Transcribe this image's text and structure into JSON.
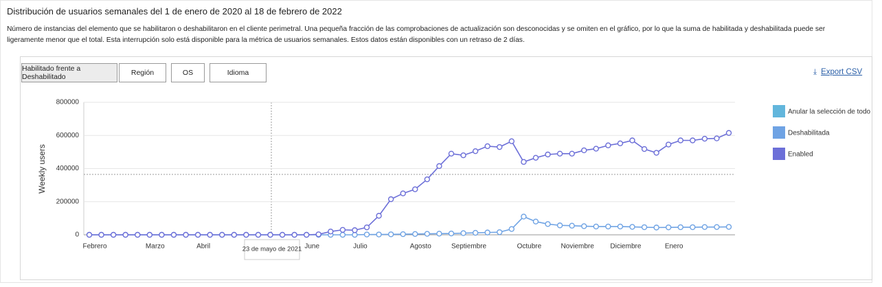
{
  "header": {
    "title": "Distribución de usuarios semanales del 1 de enero de 2020 al 18 de febrero de 2022",
    "description": "Número de instancias del elemento que se habilitaron o deshabilitaron en el cliente perimetral. Una pequeña fracción de las comprobaciones de actualización son desconocidas y se omiten en el gráfico, por lo que la suma de habilitada y deshabilitada puede ser ligeramente menor que el total. Esta interrupción solo está disponible para la métrica de usuarios semanales. Estos datos están disponibles con un retraso de 2 días."
  },
  "tabs": [
    "Habilitado frente a Deshabilitado",
    "Región",
    "OS",
    "Idioma"
  ],
  "export": "Export CSV",
  "chart_data": {
    "type": "line",
    "y_label": "Weekly users",
    "tooltip": "23 de mayo de 2021",
    "deselect_all": {
      "label": "Anular la selección de todo",
      "color": "#62b6dc"
    },
    "categories": [
      "Febrero",
      null,
      null,
      null,
      null,
      "Marzo",
      null,
      null,
      null,
      "Abril",
      null,
      null,
      null,
      null,
      null,
      null,
      null,
      null,
      "June",
      null,
      null,
      null,
      "Julio",
      null,
      null,
      null,
      null,
      "Agosto",
      null,
      null,
      null,
      "Septiembre",
      null,
      null,
      null,
      null,
      "Octubre",
      null,
      null,
      null,
      "Noviembre",
      null,
      null,
      null,
      "Diciembre",
      null,
      null,
      null,
      "Enero",
      null,
      null,
      null,
      null,
      null
    ],
    "series": [
      {
        "name": "Deshabilitada",
        "color": "#6fa3e4",
        "values": [
          0,
          0,
          0,
          0,
          0,
          0,
          0,
          0,
          0,
          0,
          0,
          0,
          0,
          0,
          0,
          0,
          0,
          0,
          0,
          0,
          0,
          0,
          0,
          2000,
          2000,
          3000,
          4000,
          5000,
          6000,
          7000,
          8000,
          10000,
          12000,
          14000,
          16000,
          35000,
          110000,
          80000,
          65000,
          57000,
          55000,
          52000,
          50000,
          50000,
          50000,
          48000,
          46000,
          44000,
          45000,
          46000,
          46000,
          47000,
          47000,
          48000
        ]
      },
      {
        "name": "Enabled",
        "color": "#6c6fd8",
        "values": [
          0,
          0,
          0,
          0,
          0,
          0,
          0,
          0,
          0,
          0,
          0,
          0,
          0,
          0,
          0,
          0,
          0,
          0,
          0,
          3000,
          20000,
          30000,
          28000,
          45000,
          115000,
          215000,
          250000,
          275000,
          335000,
          415000,
          490000,
          480000,
          505000,
          535000,
          530000,
          565000,
          440000,
          465000,
          485000,
          490000,
          490000,
          510000,
          520000,
          540000,
          552000,
          570000,
          518000,
          495000,
          545000,
          570000,
          570000,
          580000,
          582000,
          615000
        ]
      }
    ],
    "ylim": [
      0,
      800000
    ],
    "yticks": [
      0,
      200000,
      400000,
      600000,
      800000
    ],
    "grid": true
  }
}
